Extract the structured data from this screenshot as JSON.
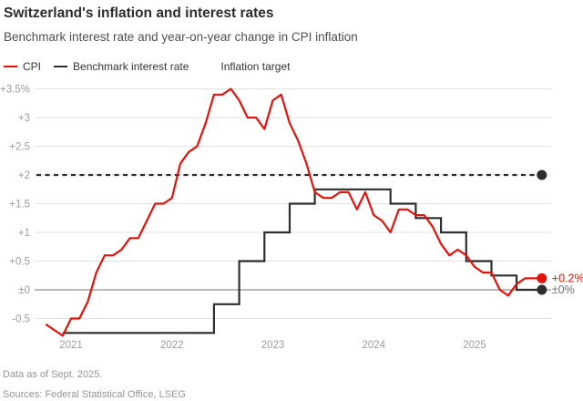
{
  "header": {
    "title": "Switzerland's inflation and interest rates",
    "subtitle": "Benchmark interest rate and year-on-year change in CPI inflation"
  },
  "legend": {
    "items": [
      {
        "label": "CPI",
        "color": "#e3120b",
        "style": "solid"
      },
      {
        "label": "Benchmark interest rate",
        "color": "#2e2e2e",
        "style": "solid"
      },
      {
        "label": "Inflation target",
        "color": "#2e2e2e",
        "style": "dashed"
      }
    ]
  },
  "footer": {
    "note": "Data as of Sept. 2025.",
    "sources": "Sources: Federal Statistical Office, LSEG"
  },
  "colors": {
    "cpi_red": "#e3120b",
    "line_black": "#2e2e2e",
    "grid": "#e2e2e2",
    "zero_line": "#8f8f8f",
    "tick_text": "#9c9c9c",
    "end_label_dark": "#6f6f6f"
  },
  "chart_data": {
    "type": "line",
    "title": "Switzerland's inflation and interest rates",
    "subtitle": "Benchmark interest rate and year-on-year change in CPI inflation",
    "unit": "%",
    "x_axis": {
      "range_months": [
        "2020-10",
        "2025-09"
      ],
      "ticks": [
        {
          "label": "2021",
          "month": "2021-01"
        },
        {
          "label": "2022",
          "month": "2022-01"
        },
        {
          "label": "2023",
          "month": "2023-01"
        },
        {
          "label": "2024",
          "month": "2024-01"
        },
        {
          "label": "2025",
          "month": "2025-01"
        }
      ]
    },
    "y_axis": {
      "range": [
        -0.75,
        3.5
      ],
      "ticks": [
        {
          "label": "+3.5%",
          "value": 3.5
        },
        {
          "label": "+3",
          "value": 3
        },
        {
          "label": "+2.5",
          "value": 2.5
        },
        {
          "label": "+2",
          "value": 2
        },
        {
          "label": "+1.5",
          "value": 1.5
        },
        {
          "label": "+1",
          "value": 1
        },
        {
          "label": "+0.5",
          "value": 0.5
        },
        {
          "label": "±0",
          "value": 0
        },
        {
          "label": "-0.5",
          "value": -0.5
        }
      ]
    },
    "series": [
      {
        "name": "CPI",
        "kind": "line",
        "color": "#e3120b",
        "start": "2020-10",
        "end_label": "+0.2%",
        "values": [
          -0.6,
          -0.7,
          -0.8,
          -0.5,
          -0.5,
          -0.2,
          0.3,
          0.6,
          0.6,
          0.7,
          0.9,
          0.9,
          1.2,
          1.5,
          1.5,
          1.6,
          2.2,
          2.4,
          2.5,
          2.9,
          3.4,
          3.4,
          3.5,
          3.3,
          3.0,
          3.0,
          2.8,
          3.3,
          3.4,
          2.9,
          2.6,
          2.2,
          1.7,
          1.6,
          1.6,
          1.7,
          1.7,
          1.4,
          1.7,
          1.3,
          1.2,
          1.0,
          1.4,
          1.4,
          1.3,
          1.3,
          1.1,
          0.8,
          0.6,
          0.7,
          0.6,
          0.4,
          0.3,
          0.3,
          0.0,
          -0.1,
          0.1,
          0.2,
          0.2,
          0.2
        ]
      },
      {
        "name": "Benchmark interest rate",
        "kind": "step",
        "color": "#2e2e2e",
        "end_label": "±0%",
        "changes": [
          {
            "month": "2020-12",
            "value": -0.75
          },
          {
            "month": "2022-06",
            "value": -0.25
          },
          {
            "month": "2022-09",
            "value": 0.5
          },
          {
            "month": "2022-12",
            "value": 1.0
          },
          {
            "month": "2023-03",
            "value": 1.5
          },
          {
            "month": "2023-06",
            "value": 1.75
          },
          {
            "month": "2024-03",
            "value": 1.5
          },
          {
            "month": "2024-06",
            "value": 1.25
          },
          {
            "month": "2024-09",
            "value": 1.0
          },
          {
            "month": "2024-12",
            "value": 0.5
          },
          {
            "month": "2025-03",
            "value": 0.25
          },
          {
            "month": "2025-06",
            "value": 0.0
          }
        ]
      },
      {
        "name": "Inflation target",
        "kind": "reference-line",
        "color": "#2e2e2e",
        "style": "dashed",
        "value": 2.0
      }
    ]
  }
}
